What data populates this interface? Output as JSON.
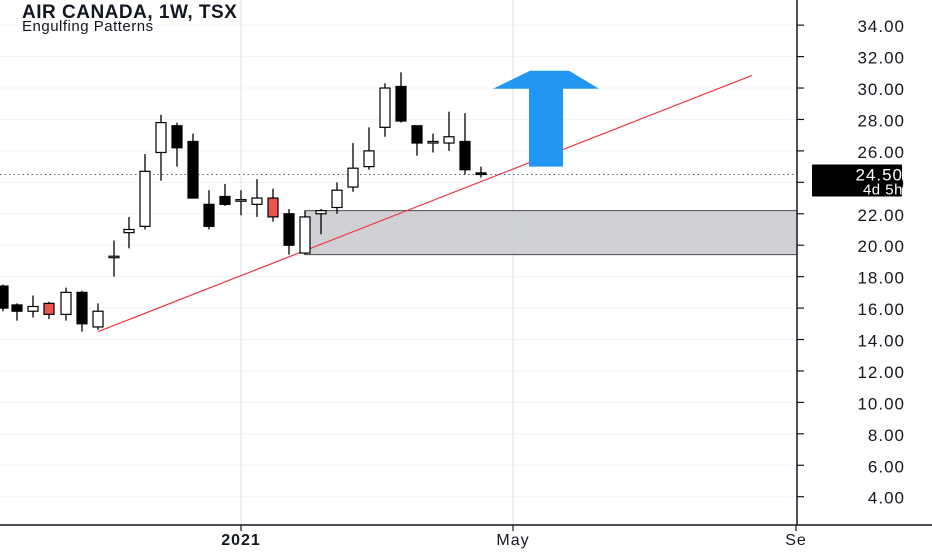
{
  "chart_data": {
    "type": "candlestick",
    "title": "AIR CANADA, 1W, TSX",
    "subtitle": "Engulfing Patterns",
    "ylim": [
      2.2,
      35.6
    ],
    "y_ticks": [
      "4.00",
      "6.00",
      "8.00",
      "10.00",
      "12.00",
      "14.00",
      "16.00",
      "18.00",
      "20.00",
      "22.00",
      "24.00",
      "26.00",
      "28.00",
      "30.00",
      "32.00",
      "34.00"
    ],
    "x_ticks": [
      "2021",
      "May",
      "Se"
    ],
    "current_price": "24.50",
    "time_to_close": "4d 5h",
    "up_color": "#ffffff",
    "down_color": "#000000",
    "highlight_color": "#ef5350",
    "trendline_color": "#f23645",
    "zone_color": "#c8c9ce",
    "arrow_color": "#2196f3",
    "candles": [
      {
        "x": 3,
        "o": 17.4,
        "h": 17.5,
        "l": 15.8,
        "c": 16.0
      },
      {
        "x": 17,
        "o": 16.2,
        "h": 16.3,
        "l": 15.2,
        "c": 15.8
      },
      {
        "x": 33,
        "o": 15.8,
        "h": 16.8,
        "l": 15.4,
        "c": 16.1
      },
      {
        "x": 49,
        "o": 16.3,
        "h": 16.4,
        "l": 15.3,
        "c": 15.6,
        "highlight": true
      },
      {
        "x": 66,
        "o": 15.6,
        "h": 17.3,
        "l": 15.2,
        "c": 17.0
      },
      {
        "x": 82,
        "o": 17.0,
        "h": 17.1,
        "l": 14.5,
        "c": 15.0
      },
      {
        "x": 98,
        "o": 14.8,
        "h": 16.3,
        "l": 14.6,
        "c": 15.8
      },
      {
        "x": 114,
        "o": 19.3,
        "h": 20.3,
        "l": 18.0,
        "c": 19.3
      },
      {
        "x": 129,
        "o": 20.8,
        "h": 21.8,
        "l": 19.8,
        "c": 21.0
      },
      {
        "x": 145,
        "o": 21.2,
        "h": 25.8,
        "l": 21.0,
        "c": 24.7
      },
      {
        "x": 161,
        "o": 25.9,
        "h": 28.3,
        "l": 24.1,
        "c": 27.8
      },
      {
        "x": 177,
        "o": 27.6,
        "h": 27.8,
        "l": 25.0,
        "c": 26.2
      },
      {
        "x": 193,
        "o": 26.6,
        "h": 27.1,
        "l": 23.0,
        "c": 23.0
      },
      {
        "x": 209,
        "o": 22.6,
        "h": 23.5,
        "l": 21.0,
        "c": 21.2
      },
      {
        "x": 225,
        "o": 23.1,
        "h": 23.9,
        "l": 22.5,
        "c": 22.6
      },
      {
        "x": 241,
        "o": 22.8,
        "h": 23.5,
        "l": 21.9,
        "c": 22.9
      },
      {
        "x": 257,
        "o": 22.6,
        "h": 24.2,
        "l": 21.8,
        "c": 23.0
      },
      {
        "x": 273,
        "o": 23.0,
        "h": 23.6,
        "l": 21.5,
        "c": 21.8,
        "highlight": true
      },
      {
        "x": 289,
        "o": 22.0,
        "h": 22.3,
        "l": 19.4,
        "c": 20.0
      },
      {
        "x": 305,
        "o": 19.5,
        "h": 22.2,
        "l": 19.4,
        "c": 21.8
      },
      {
        "x": 321,
        "o": 22.0,
        "h": 22.3,
        "l": 20.7,
        "c": 22.2
      },
      {
        "x": 337,
        "o": 22.4,
        "h": 24.0,
        "l": 22.0,
        "c": 23.5
      },
      {
        "x": 353,
        "o": 23.7,
        "h": 26.5,
        "l": 23.4,
        "c": 24.9
      },
      {
        "x": 369,
        "o": 25.0,
        "h": 27.5,
        "l": 24.8,
        "c": 26.0
      },
      {
        "x": 385,
        "o": 27.5,
        "h": 30.3,
        "l": 26.9,
        "c": 30.0
      },
      {
        "x": 401,
        "o": 30.1,
        "h": 31.0,
        "l": 27.8,
        "c": 27.9
      },
      {
        "x": 417,
        "o": 27.6,
        "h": 27.6,
        "l": 25.7,
        "c": 26.5
      },
      {
        "x": 433,
        "o": 26.5,
        "h": 27.1,
        "l": 25.9,
        "c": 26.6
      },
      {
        "x": 449,
        "o": 26.5,
        "h": 28.5,
        "l": 26.0,
        "c": 26.9
      },
      {
        "x": 465,
        "o": 26.6,
        "h": 28.4,
        "l": 24.5,
        "c": 24.8
      },
      {
        "x": 481,
        "o": 24.6,
        "h": 25.0,
        "l": 24.3,
        "c": 24.5
      }
    ]
  }
}
